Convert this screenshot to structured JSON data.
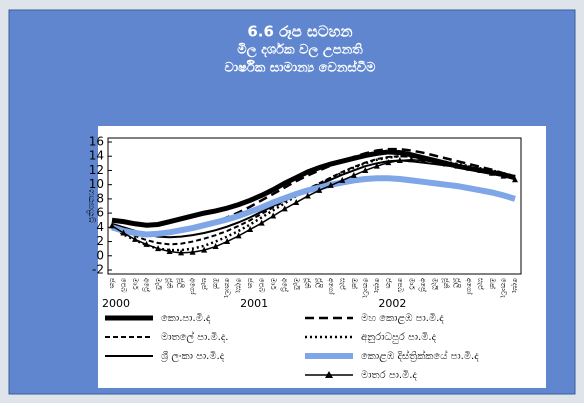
{
  "chart_data": {
    "type": "line",
    "title": [
      "6.6 රූප සටහන",
      "මිල දර්ශක වල උපනති",
      "වාර්ෂික සාමාන්‍ය වෙනස්වීම"
    ],
    "y_label": "ප්‍රතිශතය",
    "categories": [
      "ජන",
      "පෙබ",
      "මාර්",
      "අප්‍රේ",
      "මැයි",
      "ජූනි",
      "ජූලි",
      "අගෝ",
      "සැප්",
      "ඔක්",
      "නොවැ",
      "දෙසැ",
      "ජන",
      "පෙබ",
      "මාර්",
      "අප්‍රේ",
      "මැයි",
      "ජූනි",
      "ජූලි",
      "අගෝ",
      "සැප්",
      "ඔක්",
      "නොවැ",
      "දෙසැ",
      "ජන",
      "පෙබ",
      "මාර්",
      "අප්‍රේ",
      "මැයි",
      "ජූනි",
      "ජූලි",
      "අගෝ",
      "සැප්",
      "ඔක්",
      "නොවැ",
      "දෙසැ"
    ],
    "years": [
      "2000",
      "2001",
      "2002"
    ],
    "ylim": [
      -2,
      16
    ],
    "yticks": [
      -2,
      0,
      2,
      4,
      6,
      8,
      10,
      12,
      14,
      16
    ],
    "series": [
      {
        "name": "කො.පා.මි.ද",
        "color": "#000000",
        "width": 5,
        "style": "solid",
        "values": [
          5,
          4.8,
          4.5,
          4.3,
          4.4,
          4.8,
          5.2,
          5.6,
          6,
          6.3,
          6.7,
          7.2,
          7.8,
          8.5,
          9.3,
          10.2,
          11,
          11.8,
          12.4,
          12.9,
          13.3,
          13.7,
          14.1,
          14.4,
          14.6,
          14.5,
          14.2,
          13.8,
          13.4,
          13,
          12.6,
          12.3,
          12,
          11.7,
          11.4,
          11
        ]
      },
      {
        "name": "මාතලේ පා.මි.ද.",
        "color": "#000000",
        "width": 2,
        "style": "dashed",
        "values": [
          4.3,
          3.5,
          2.8,
          2.2,
          1.8,
          1.6,
          1.7,
          2,
          2.4,
          2.9,
          3.5,
          4.2,
          5,
          5.9,
          6.8,
          7.7,
          8.6,
          9.4,
          10.2,
          11,
          11.8,
          12.5,
          13.1,
          13.6,
          13.9,
          14,
          13.9,
          13.6,
          13.3,
          13,
          12.7,
          12.4,
          12.1,
          11.8,
          11.4,
          11
        ]
      },
      {
        "name": "ශ්‍රී ලංකා පා.මි.ද",
        "color": "#000000",
        "width": 2,
        "style": "solid",
        "values": [
          4.5,
          4,
          3.5,
          3,
          2.7,
          2.6,
          2.7,
          2.9,
          3.2,
          3.6,
          4.1,
          4.7,
          5.4,
          6.2,
          7,
          7.8,
          8.6,
          9.3,
          10,
          10.7,
          11.4,
          12,
          12.6,
          13,
          13.3,
          13.4,
          13.3,
          13.1,
          12.9,
          12.7,
          12.5,
          12.2,
          11.9,
          11.6,
          11.2,
          10.8
        ]
      },
      {
        "name": "මහ කොළඹ පා.මි.ද",
        "color": "#000000",
        "width": 2.5,
        "style": "longdash",
        "values": [
          4.2,
          3.8,
          3.4,
          3.1,
          3,
          3.1,
          3.4,
          3.8,
          4.3,
          4.8,
          5.4,
          6.1,
          6.9,
          7.8,
          8.7,
          9.6,
          10.5,
          11.3,
          12,
          12.7,
          13.3,
          13.9,
          14.4,
          14.8,
          15,
          15,
          14.8,
          14.5,
          14.1,
          13.7,
          13.3,
          12.9,
          12.5,
          12.1,
          11.6,
          11.1
        ]
      },
      {
        "name": "අනුරාධපුර පා.මි.ද",
        "color": "#000000",
        "width": 2.5,
        "style": "dotted",
        "values": [
          4,
          3,
          2.2,
          1.5,
          1,
          0.8,
          0.8,
          1,
          1.4,
          2,
          2.7,
          3.5,
          4.4,
          5.4,
          6.4,
          7.4,
          8.4,
          9.3,
          10.1,
          10.9,
          11.7,
          12.4,
          13,
          13.5,
          13.8,
          14,
          14,
          13.8,
          13.5,
          13.2,
          12.9,
          12.6,
          12.3,
          12,
          11.6,
          11.2
        ]
      },
      {
        "name": "කොළඹ දිස්ත්‍රික්කයේ පා.මි.ද",
        "color": "#7fa6e6",
        "width": 6,
        "style": "solid",
        "values": [
          4,
          3.5,
          3.2,
          3,
          3.1,
          3.3,
          3.6,
          3.9,
          4.3,
          4.7,
          5.1,
          5.6,
          6.2,
          6.8,
          7.5,
          8.1,
          8.7,
          9.2,
          9.6,
          10,
          10.3,
          10.6,
          10.8,
          10.9,
          10.9,
          10.8,
          10.6,
          10.4,
          10.2,
          10,
          9.8,
          9.5,
          9.2,
          8.9,
          8.5,
          8
        ]
      },
      {
        "name": "මාතර පා.මි.ද",
        "color": "#000000",
        "width": 1.5,
        "style": "solid",
        "marker": "triangle",
        "values": [
          4.2,
          3.2,
          2.3,
          1.6,
          1,
          0.6,
          0.4,
          0.5,
          0.8,
          1.3,
          2,
          2.8,
          3.7,
          4.6,
          5.6,
          6.6,
          7.5,
          8.4,
          9.2,
          9.9,
          10.6,
          11.3,
          12,
          12.6,
          13.1,
          13.4,
          13.5,
          13.4,
          13.2,
          12.9,
          12.6,
          12.3,
          12,
          11.6,
          11.2,
          10.7
        ]
      }
    ]
  }
}
